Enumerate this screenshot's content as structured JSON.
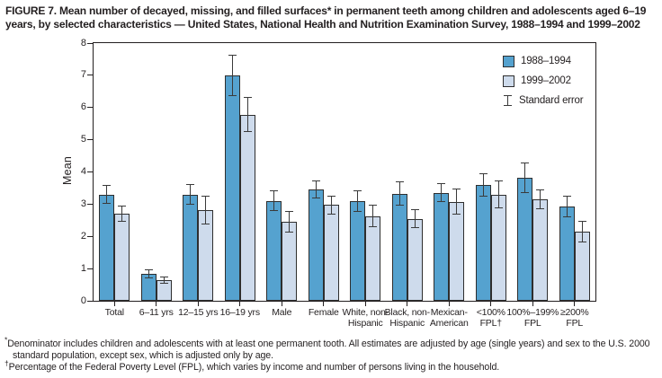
{
  "title": "FIGURE 7. Mean number of decayed, missing, and filled surfaces* in permanent teeth among children and adolescents aged 6–19 years, by selected characteristics — United States, National Health and Nutrition Examination Survey, 1988–1994 and 1999–2002",
  "chart_data": {
    "type": "bar",
    "title": "",
    "xlabel": "",
    "ylabel": "Mean",
    "ylim": [
      0,
      8
    ],
    "yticks": [
      0,
      1,
      2,
      3,
      4,
      5,
      6,
      7,
      8
    ],
    "grid": false,
    "legend_position": "top-right",
    "legend_se_label": "Standard error",
    "categories": [
      [
        "Total"
      ],
      [
        "6–11 yrs"
      ],
      [
        "12–15 yrs"
      ],
      [
        "16–19 yrs"
      ],
      [
        "Male"
      ],
      [
        "Female"
      ],
      [
        "White, non-",
        "Hispanic"
      ],
      [
        "Black, non-",
        "Hispanic"
      ],
      [
        "Mexican-",
        "American"
      ],
      [
        "<100%",
        "FPL†"
      ],
      [
        "100%–199%",
        "FPL"
      ],
      [
        "≥200%",
        "FPL"
      ]
    ],
    "series": [
      {
        "name": "1988–1994",
        "color": "#55a2cf",
        "values": [
          3.3,
          0.83,
          3.3,
          7.0,
          3.1,
          3.45,
          3.1,
          3.33,
          3.35,
          3.6,
          3.82,
          2.94
        ],
        "standard_error": [
          0.27,
          0.12,
          0.3,
          0.62,
          0.31,
          0.27,
          0.32,
          0.35,
          0.28,
          0.34,
          0.47,
          0.32
        ]
      },
      {
        "name": "1999–2002",
        "color": "#cedbec",
        "values": [
          2.71,
          0.64,
          2.82,
          5.78,
          2.45,
          2.97,
          2.63,
          2.54,
          3.08,
          3.3,
          3.16,
          2.14
        ],
        "standard_error": [
          0.23,
          0.11,
          0.43,
          0.53,
          0.31,
          0.27,
          0.34,
          0.28,
          0.39,
          0.42,
          0.29,
          0.32
        ]
      }
    ]
  },
  "footnotes": [
    {
      "marker": "*",
      "text": "Denominator includes children and adolescents with at least one permanent tooth. All estimates are adjusted by age (single years) and sex to the U.S. 2000 standard population, except sex, which is adjusted only by age."
    },
    {
      "marker": "†",
      "text": "Percentage of the Federal Poverty Level (FPL), which varies by income and number of persons living in the household."
    }
  ]
}
